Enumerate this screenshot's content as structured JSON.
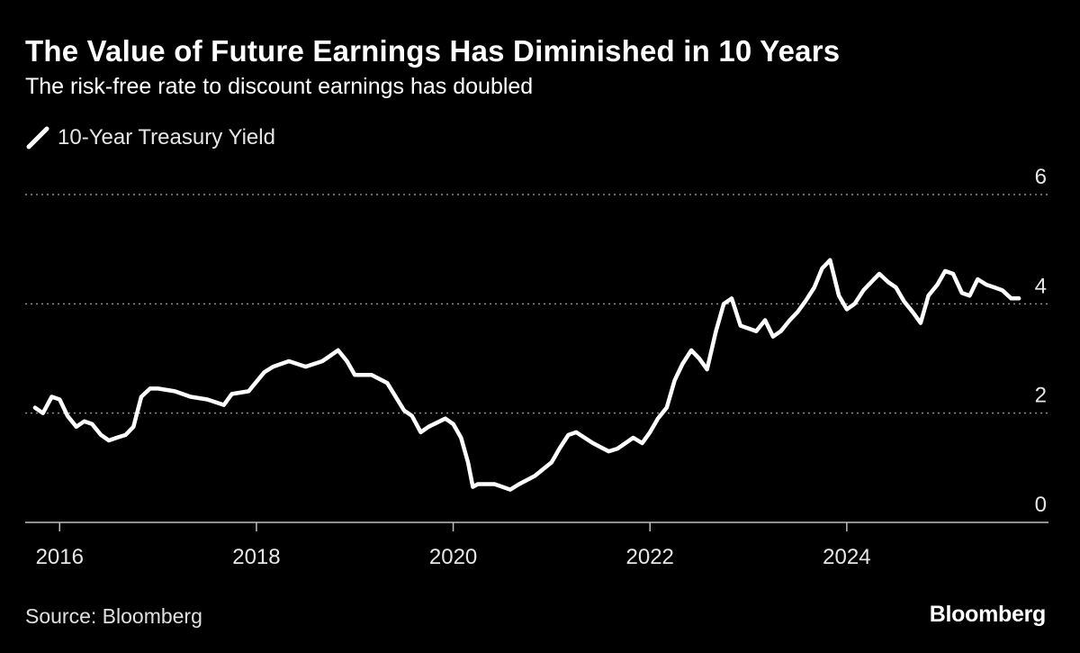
{
  "header": {
    "title": "The Value of Future Earnings Has Diminished in 10 Years",
    "subtitle": "The risk-free rate to discount earnings has doubled"
  },
  "footer": {
    "source": "Source: Bloomberg",
    "brand": "Bloomberg"
  },
  "colors": {
    "background": "#000000",
    "line": "#ffffff",
    "grid": "#8a8a8a",
    "text": "#ffffff"
  },
  "chart_data": {
    "type": "line",
    "title": "The Value of Future Earnings Has Diminished in 10 Years",
    "subtitle": "The risk-free rate to discount earnings has doubled",
    "xlabel": "",
    "ylabel": "",
    "xlim": [
      2015.65,
      2026.05
    ],
    "ylim": [
      0,
      6
    ],
    "y_ticks": [
      0,
      2,
      4,
      6
    ],
    "y_tick_labels": [
      "0",
      "2",
      "4",
      "6"
    ],
    "x_ticks": [
      2016,
      2018,
      2020,
      2022,
      2024
    ],
    "x_tick_labels": [
      "2016",
      "2018",
      "2020",
      "2022",
      "2024"
    ],
    "grid": "horizontal dotted",
    "legend": {
      "position": "top-left",
      "entries": [
        "10-Year Treasury Yield"
      ]
    },
    "series": [
      {
        "name": "10-Year Treasury Yield",
        "x": [
          2015.75,
          2015.83,
          2015.92,
          2016.0,
          2016.08,
          2016.17,
          2016.25,
          2016.33,
          2016.42,
          2016.5,
          2016.58,
          2016.67,
          2016.75,
          2016.83,
          2016.92,
          2017.0,
          2017.17,
          2017.33,
          2017.5,
          2017.67,
          2017.75,
          2017.92,
          2018.08,
          2018.17,
          2018.33,
          2018.5,
          2018.67,
          2018.83,
          2018.92,
          2019.0,
          2019.17,
          2019.33,
          2019.5,
          2019.58,
          2019.67,
          2019.75,
          2019.92,
          2020.0,
          2020.08,
          2020.15,
          2020.2,
          2020.25,
          2020.42,
          2020.58,
          2020.67,
          2020.83,
          2021.0,
          2021.08,
          2021.17,
          2021.25,
          2021.42,
          2021.58,
          2021.67,
          2021.83,
          2021.92,
          2022.0,
          2022.08,
          2022.17,
          2022.25,
          2022.33,
          2022.42,
          2022.5,
          2022.58,
          2022.67,
          2022.75,
          2022.83,
          2022.92,
          2023.0,
          2023.08,
          2023.17,
          2023.25,
          2023.33,
          2023.42,
          2023.5,
          2023.58,
          2023.67,
          2023.75,
          2023.83,
          2023.92,
          2024.0,
          2024.08,
          2024.17,
          2024.25,
          2024.33,
          2024.42,
          2024.5,
          2024.58,
          2024.67,
          2024.75,
          2024.83,
          2024.92,
          2025.0,
          2025.08,
          2025.17,
          2025.25,
          2025.33,
          2025.42,
          2025.5,
          2025.58,
          2025.67,
          2025.75
        ],
        "y": [
          2.1,
          2.0,
          2.3,
          2.25,
          1.95,
          1.75,
          1.85,
          1.8,
          1.6,
          1.5,
          1.55,
          1.6,
          1.75,
          2.3,
          2.45,
          2.45,
          2.4,
          2.3,
          2.25,
          2.15,
          2.35,
          2.4,
          2.75,
          2.85,
          2.95,
          2.85,
          2.95,
          3.15,
          2.95,
          2.7,
          2.7,
          2.55,
          2.05,
          1.95,
          1.65,
          1.75,
          1.9,
          1.8,
          1.55,
          1.1,
          0.65,
          0.7,
          0.7,
          0.6,
          0.7,
          0.85,
          1.1,
          1.35,
          1.6,
          1.65,
          1.45,
          1.3,
          1.35,
          1.55,
          1.45,
          1.65,
          1.9,
          2.1,
          2.6,
          2.9,
          3.15,
          3.0,
          2.8,
          3.5,
          4.0,
          4.1,
          3.6,
          3.55,
          3.5,
          3.7,
          3.4,
          3.5,
          3.7,
          3.85,
          4.05,
          4.3,
          4.65,
          4.8,
          4.15,
          3.9,
          4.0,
          4.25,
          4.4,
          4.55,
          4.4,
          4.3,
          4.05,
          3.85,
          3.65,
          4.15,
          4.35,
          4.6,
          4.55,
          4.2,
          4.15,
          4.45,
          4.35,
          4.3,
          4.25,
          4.1,
          4.1
        ]
      }
    ]
  }
}
